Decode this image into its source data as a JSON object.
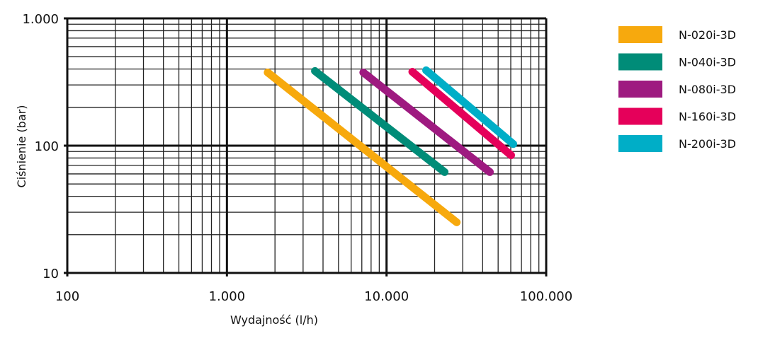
{
  "chart_data": {
    "type": "line",
    "title": "",
    "xlabel": "Wydajność (l/h)",
    "ylabel": "Ciśnienie  (bar)",
    "xscale": "log",
    "yscale": "log",
    "xlim": [
      100,
      100000
    ],
    "ylim": [
      10,
      1000
    ],
    "xticks": [
      {
        "value": 100,
        "label": "100"
      },
      {
        "value": 1000,
        "label": "1.000"
      },
      {
        "value": 10000,
        "label": "10.000"
      },
      {
        "value": 100000,
        "label": "100.000"
      }
    ],
    "yticks": [
      {
        "value": 10,
        "label": "10"
      },
      {
        "value": 100,
        "label": "100"
      },
      {
        "value": 1000,
        "label": "1.000"
      }
    ],
    "grid": true,
    "legend_position": "right",
    "series": [
      {
        "name": "N-020i-3D",
        "color": "#F7A90D",
        "x": [
          1800,
          27500
        ],
        "y": [
          376,
          25
        ]
      },
      {
        "name": "N-040i-3D",
        "color": "#008C78",
        "x": [
          3560,
          23100
        ],
        "y": [
          386,
          62
        ]
      },
      {
        "name": "N-080i-3D",
        "color": "#9E1A80",
        "x": [
          7150,
          44400
        ],
        "y": [
          376,
          62
        ]
      },
      {
        "name": "N-160i-3D",
        "color": "#E5005A",
        "x": [
          14500,
          60300
        ],
        "y": [
          381,
          84
        ]
      },
      {
        "name": "N-200i-3D",
        "color": "#00AEC7",
        "x": [
          17700,
          62200
        ],
        "y": [
          391,
          103
        ]
      }
    ]
  }
}
